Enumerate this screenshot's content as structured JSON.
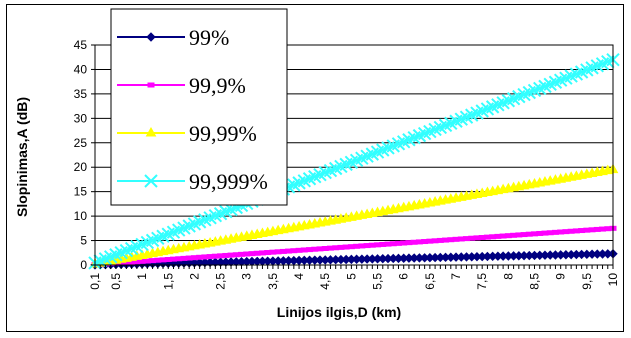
{
  "chart_data": {
    "type": "line",
    "xlabel": "Linijos ilgis,D (km)",
    "ylabel": "Slopinimas,A (dB)",
    "ylim": [
      0,
      45
    ],
    "yticks": [
      0,
      5,
      10,
      15,
      20,
      25,
      30,
      35,
      40,
      45
    ],
    "x": [
      0.1,
      0.2,
      0.3,
      0.4,
      0.5,
      0.6,
      0.7,
      0.8,
      0.9,
      1,
      1.1,
      1.2,
      1.3,
      1.4,
      1.5,
      1.6,
      1.7,
      1.8,
      1.9,
      2,
      2.1,
      2.2,
      2.3,
      2.4,
      2.5,
      2.6,
      2.7,
      2.8,
      2.9,
      3,
      3.1,
      3.2,
      3.3,
      3.4,
      3.5,
      3.6,
      3.7,
      3.8,
      3.9,
      4,
      4.1,
      4.2,
      4.3,
      4.4,
      4.5,
      4.6,
      4.7,
      4.8,
      4.9,
      5,
      5.1,
      5.2,
      5.3,
      5.4,
      5.5,
      5.6,
      5.7,
      5.8,
      5.9,
      6,
      6.1,
      6.2,
      6.3,
      6.4,
      6.5,
      6.6,
      6.7,
      6.8,
      6.9,
      7,
      7.1,
      7.2,
      7.3,
      7.4,
      7.5,
      7.6,
      7.7,
      7.8,
      7.9,
      8,
      8.1,
      8.2,
      8.3,
      8.4,
      8.5,
      8.6,
      8.7,
      8.8,
      8.9,
      9,
      9.1,
      9.2,
      9.3,
      9.4,
      9.5,
      9.6,
      9.7,
      9.8,
      9.9,
      10
    ],
    "xtick_labels": [
      "0,1",
      "0,5",
      "1",
      "1,5",
      "2",
      "2,5",
      "3",
      "3,5",
      "4",
      "4,5",
      "5",
      "5,5",
      "6",
      "6,5",
      "7",
      "7,5",
      "8",
      "8,5",
      "9",
      "9,5",
      "10"
    ],
    "xtick_values": [
      0.1,
      0.5,
      1,
      1.5,
      2,
      2.5,
      3,
      3.5,
      4,
      4.5,
      5,
      5.5,
      6,
      6.5,
      7,
      7.5,
      8,
      8.5,
      9,
      9.5,
      10
    ],
    "series": [
      {
        "name": "99%",
        "color": "#000080",
        "marker": "diamond",
        "y_at_max": 2.3
      },
      {
        "name": "99,9%",
        "color": "#ff00ff",
        "marker": "square",
        "y_at_max": 7.5
      },
      {
        "name": "99,99%",
        "color": "#ffff00",
        "marker": "triangle",
        "y_at_max": 19.5
      },
      {
        "name": "99,999%",
        "color": "#33ffff",
        "marker": "x",
        "y_at_max": 42
      }
    ],
    "legend_position": "top-left",
    "grid": true
  }
}
